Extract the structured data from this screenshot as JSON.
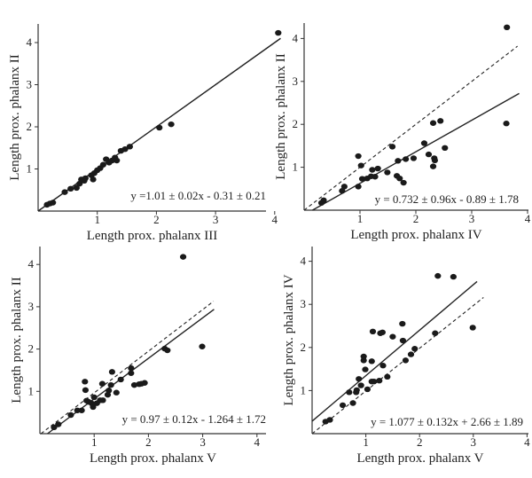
{
  "chart_data": [
    {
      "type": "scatter",
      "xlabel": "Length prox. phalanx III",
      "ylabel": "Length prox. phalanx II",
      "equation": "y =1.01 ± 0.02x - 0.31 ± 0.21",
      "xticks": [
        "1",
        "2",
        "3",
        "4"
      ],
      "yticks": [
        "1",
        "2",
        "3",
        "4"
      ],
      "xlim": [
        0,
        4.1
      ],
      "ylim": [
        0,
        4.4
      ],
      "points": [
        [
          0.15,
          0.15
        ],
        [
          0.2,
          0.18
        ],
        [
          0.25,
          0.2
        ],
        [
          0.45,
          0.45
        ],
        [
          0.55,
          0.53
        ],
        [
          0.65,
          0.55
        ],
        [
          0.7,
          0.65
        ],
        [
          0.73,
          0.75
        ],
        [
          0.78,
          0.72
        ],
        [
          0.8,
          0.78
        ],
        [
          0.9,
          0.85
        ],
        [
          0.93,
          0.75
        ],
        [
          0.95,
          0.9
        ],
        [
          1.0,
          0.97
        ],
        [
          1.05,
          1.02
        ],
        [
          1.1,
          1.1
        ],
        [
          1.15,
          1.23
        ],
        [
          1.2,
          1.15
        ],
        [
          1.25,
          1.2
        ],
        [
          1.3,
          1.27
        ],
        [
          1.33,
          1.2
        ],
        [
          1.4,
          1.43
        ],
        [
          1.47,
          1.47
        ],
        [
          1.55,
          1.53
        ],
        [
          2.05,
          1.98
        ],
        [
          2.25,
          2.06
        ],
        [
          4.06,
          4.23
        ]
      ],
      "fit_line": [
        [
          0.0,
          0.0
        ],
        [
          4.1,
          4.1
        ]
      ],
      "identity_line": [
        [
          0.0,
          0.0
        ],
        [
          4.05,
          4.05
        ]
      ]
    },
    {
      "type": "scatter",
      "xlabel": "Length prox. phalanx IV",
      "ylabel": "Length prox. phalanx II",
      "equation": "y = 0.732 ± 0.96x - 0.89 ± 1.78",
      "xticks": [
        "1",
        "2",
        "3",
        "4"
      ],
      "yticks": [
        "1",
        "2",
        "3",
        "4"
      ],
      "xlim": [
        0,
        4
      ],
      "ylim": [
        0,
        4.4
      ],
      "points": [
        [
          0.31,
          0.17
        ],
        [
          0.35,
          0.23
        ],
        [
          0.68,
          0.45
        ],
        [
          0.72,
          0.55
        ],
        [
          0.97,
          0.55
        ],
        [
          0.97,
          1.26
        ],
        [
          1.02,
          1.04
        ],
        [
          1.04,
          0.73
        ],
        [
          1.13,
          0.74
        ],
        [
          1.2,
          0.79
        ],
        [
          1.22,
          0.94
        ],
        [
          1.27,
          0.78
        ],
        [
          1.32,
          0.97
        ],
        [
          1.49,
          0.88
        ],
        [
          1.58,
          1.48
        ],
        [
          1.66,
          0.8
        ],
        [
          1.68,
          1.15
        ],
        [
          1.71,
          0.74
        ],
        [
          1.78,
          0.64
        ],
        [
          1.82,
          1.19
        ],
        [
          1.96,
          1.21
        ],
        [
          2.15,
          1.56
        ],
        [
          2.23,
          1.3
        ],
        [
          2.31,
          1.02
        ],
        [
          2.31,
          2.03
        ],
        [
          2.33,
          1.21
        ],
        [
          2.34,
          1.16
        ],
        [
          2.44,
          2.08
        ],
        [
          2.52,
          1.45
        ],
        [
          3.63,
          4.26
        ],
        [
          3.62,
          2.02
        ]
      ],
      "fit_line": [
        [
          0.15,
          0.0
        ],
        [
          3.85,
          2.72
        ]
      ],
      "identity_line": [
        [
          0.0,
          0.0
        ],
        [
          3.82,
          3.82
        ]
      ]
    },
    {
      "type": "scatter",
      "xlabel": "Length prox. phalanx V",
      "ylabel": "Length prox. phalanx II",
      "equation": "y = 0.97 ± 0.12x - 1.264 ± 1.72",
      "xticks": [
        "1",
        "2",
        "3",
        "4"
      ],
      "yticks": [
        "1",
        "2",
        "3",
        "4"
      ],
      "xlim": [
        0,
        4.1
      ],
      "ylim": [
        0,
        4.5
      ],
      "points": [
        [
          0.26,
          0.15
        ],
        [
          0.34,
          0.22
        ],
        [
          0.57,
          0.44
        ],
        [
          0.69,
          0.55
        ],
        [
          0.77,
          0.55
        ],
        [
          0.83,
          1.23
        ],
        [
          0.84,
          1.03
        ],
        [
          0.86,
          0.78
        ],
        [
          0.9,
          0.75
        ],
        [
          0.96,
          0.71
        ],
        [
          0.98,
          0.63
        ],
        [
          1.0,
          0.86
        ],
        [
          1.05,
          0.72
        ],
        [
          1.11,
          0.79
        ],
        [
          1.15,
          1.18
        ],
        [
          1.16,
          0.79
        ],
        [
          1.25,
          0.92
        ],
        [
          1.27,
          1.02
        ],
        [
          1.31,
          1.15
        ],
        [
          1.33,
          1.46
        ],
        [
          1.41,
          0.97
        ],
        [
          1.49,
          1.28
        ],
        [
          1.68,
          1.55
        ],
        [
          1.68,
          1.43
        ],
        [
          1.74,
          1.15
        ],
        [
          1.83,
          1.17
        ],
        [
          1.87,
          1.18
        ],
        [
          1.93,
          1.2
        ],
        [
          2.3,
          2.01
        ],
        [
          2.35,
          1.97
        ],
        [
          2.64,
          4.18
        ],
        [
          2.99,
          2.06
        ]
      ],
      "fit_line": [
        [
          0.14,
          0.0
        ],
        [
          3.21,
          2.94
        ]
      ],
      "identity_line": [
        [
          0.02,
          0.0
        ],
        [
          3.2,
          3.13
        ]
      ]
    },
    {
      "type": "scatter",
      "xlabel": "Length prox. phalanx V",
      "ylabel": "Length prox. phalanx IV",
      "equation": "y = 1.077 ± 0.132x + 2.66 ± 1.89",
      "xticks": [
        "1",
        "2",
        "3",
        "4"
      ],
      "yticks": [
        "1",
        "2",
        "3",
        "4"
      ],
      "xlim": [
        0,
        4
      ],
      "ylim": [
        0,
        4.4
      ],
      "points": [
        [
          0.25,
          0.28
        ],
        [
          0.33,
          0.32
        ],
        [
          0.57,
          0.66
        ],
        [
          0.69,
          0.96
        ],
        [
          0.76,
          0.71
        ],
        [
          0.82,
          0.96
        ],
        [
          0.83,
          1.01
        ],
        [
          0.87,
          1.27
        ],
        [
          0.91,
          1.12
        ],
        [
          0.96,
          1.79
        ],
        [
          0.96,
          1.7
        ],
        [
          0.99,
          1.49
        ],
        [
          1.03,
          1.03
        ],
        [
          1.11,
          1.68
        ],
        [
          1.11,
          1.21
        ],
        [
          1.13,
          2.37
        ],
        [
          1.15,
          1.21
        ],
        [
          1.25,
          1.23
        ],
        [
          1.27,
          2.33
        ],
        [
          1.31,
          2.35
        ],
        [
          1.32,
          1.58
        ],
        [
          1.4,
          1.32
        ],
        [
          1.5,
          2.25
        ],
        [
          1.68,
          2.55
        ],
        [
          1.69,
          2.16
        ],
        [
          1.74,
          1.7
        ],
        [
          1.84,
          1.84
        ],
        [
          1.91,
          1.97
        ],
        [
          2.29,
          2.33
        ],
        [
          2.34,
          3.66
        ],
        [
          2.63,
          3.64
        ],
        [
          2.99,
          2.46
        ]
      ],
      "fit_line": [
        [
          0.0,
          0.29
        ],
        [
          3.07,
          3.53
        ]
      ],
      "identity_line": [
        [
          0.0,
          0.0
        ],
        [
          3.19,
          3.16
        ]
      ]
    }
  ]
}
